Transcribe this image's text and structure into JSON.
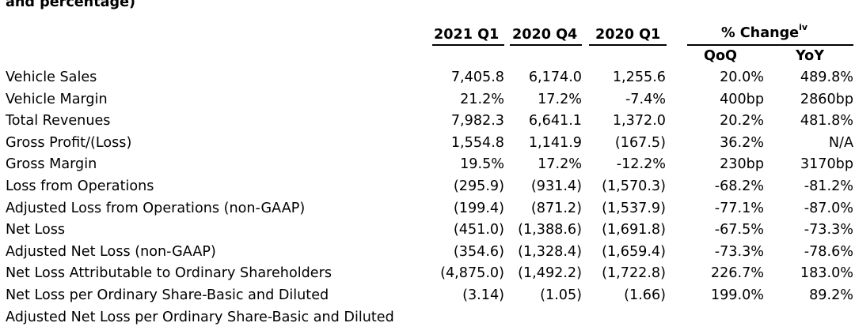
{
  "heading": "and percentage)",
  "columns": {
    "col1": "2021 Q1",
    "col2": "2020 Q4",
    "col3": "2020 Q1",
    "pct_change": "% Change",
    "pct_change_sup": "iv",
    "qoq": "QoQ",
    "yoy": "YoY"
  },
  "rows": [
    {
      "label": "Vehicle Sales",
      "v1": "7,405.8",
      "v2": "6,174.0",
      "v3": "1,255.6",
      "qoq": "20.0%",
      "yoy": "489.8%"
    },
    {
      "label": "Vehicle Margin",
      "v1": "21.2%",
      "v2": "17.2%",
      "v3": "-7.4%",
      "qoq": "400bp",
      "yoy": "2860bp"
    },
    {
      "label": "Total Revenues",
      "v1": "7,982.3",
      "v2": "6,641.1",
      "v3": "1,372.0",
      "qoq": "20.2%",
      "yoy": "481.8%"
    },
    {
      "label": "Gross Profit/(Loss)",
      "v1": "1,554.8",
      "v2": "1,141.9",
      "v3": "(167.5)",
      "qoq": "36.2%",
      "yoy": "N/A"
    },
    {
      "label": "Gross Margin",
      "v1": "19.5%",
      "v2": "17.2%",
      "v3": "-12.2%",
      "qoq": "230bp",
      "yoy": "3170bp"
    },
    {
      "label": "Loss from Operations",
      "v1": "(295.9)",
      "v2": "(931.4)",
      "v3": "(1,570.3)",
      "qoq": "-68.2%",
      "yoy": "-81.2%"
    },
    {
      "label": "Adjusted Loss from Operations (non-GAAP)",
      "v1": "(199.4)",
      "v2": "(871.2)",
      "v3": "(1,537.9)",
      "qoq": "-77.1%",
      "yoy": "-87.0%"
    },
    {
      "label": "Net Loss",
      "v1": "(451.0)",
      "v2": "(1,388.6)",
      "v3": "(1,691.8)",
      "qoq": "-67.5%",
      "yoy": "-73.3%"
    },
    {
      "label": "Adjusted Net Loss (non-GAAP)",
      "v1": "(354.6)",
      "v2": "(1,328.4)",
      "v3": "(1,659.4)",
      "qoq": "-73.3%",
      "yoy": "-78.6%"
    },
    {
      "label": "Net Loss Attributable to Ordinary Shareholders",
      "v1": "(4,875.0)",
      "v2": "(1,492.2)",
      "v3": "(1,722.8)",
      "qoq": "226.7%",
      "yoy": "183.0%"
    },
    {
      "label": "Net Loss per Ordinary Share-Basic and Diluted",
      "v1": "(3.14)",
      "v2": "(1.05)",
      "v3": "(1.66)",
      "qoq": "199.0%",
      "yoy": "89.2%"
    },
    {
      "label": "Adjusted Net Loss per Ordinary Share-Basic and Diluted",
      "v1": "",
      "v2": "",
      "v3": "",
      "qoq": "",
      "yoy": ""
    }
  ]
}
